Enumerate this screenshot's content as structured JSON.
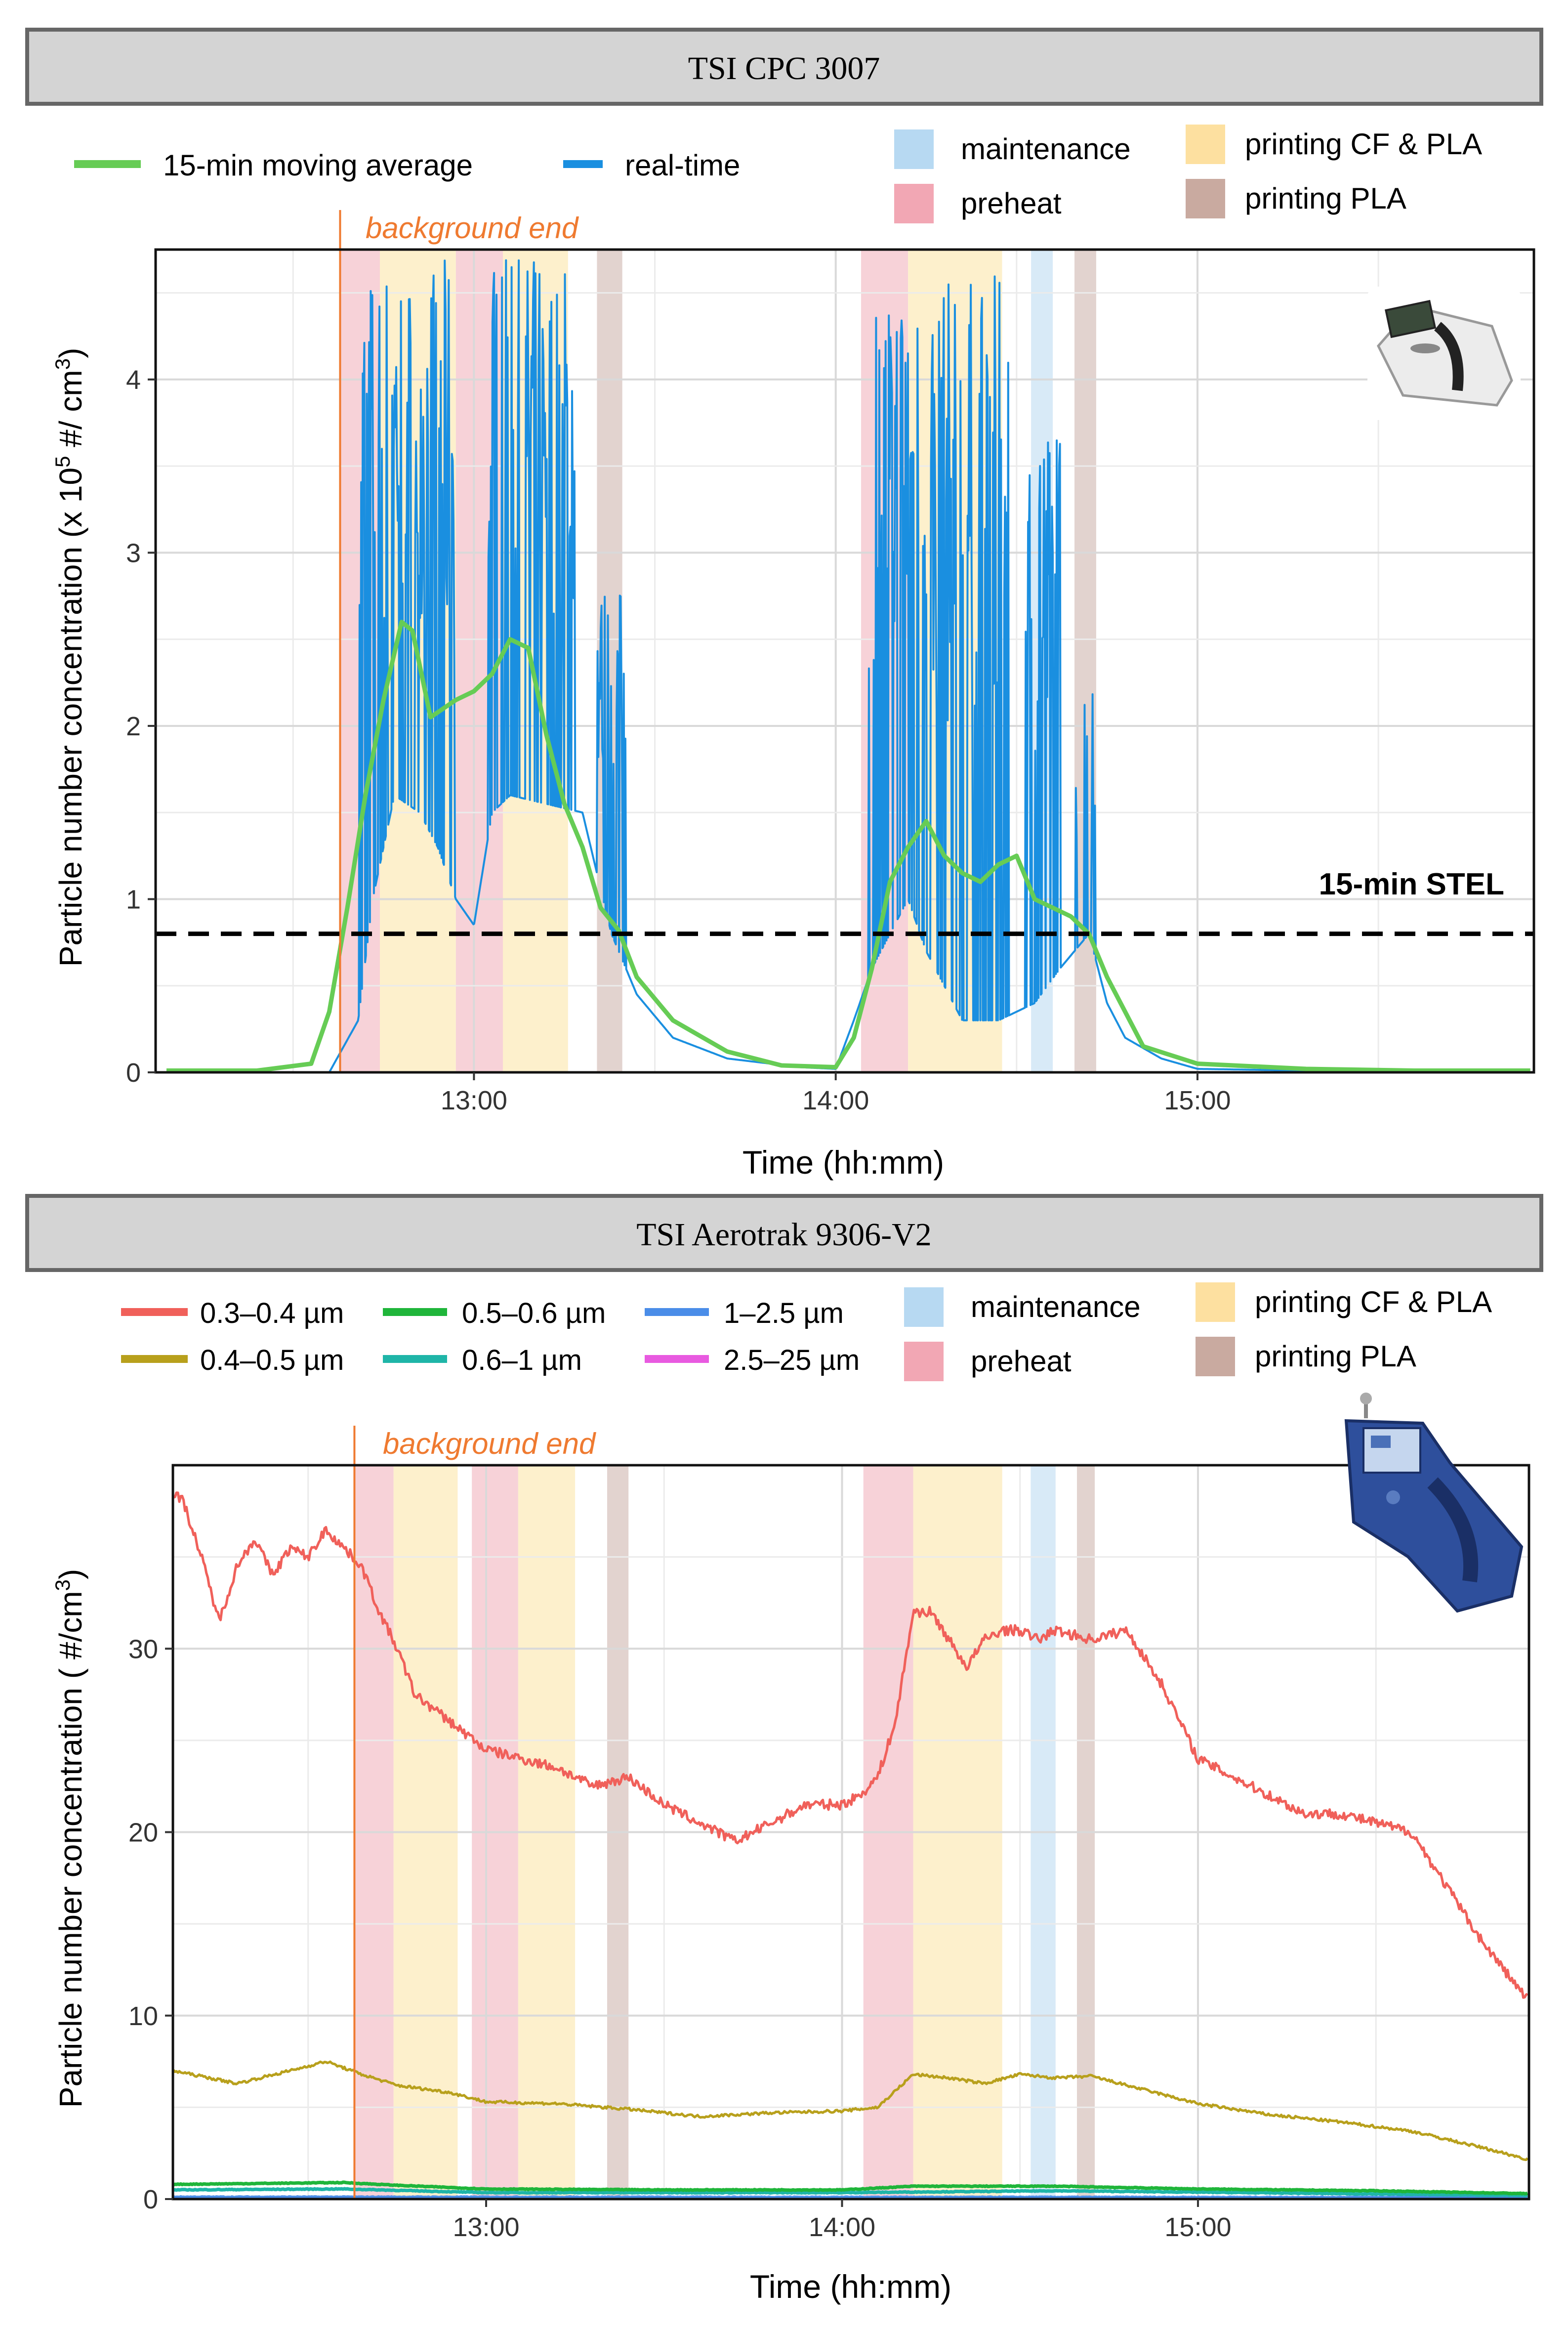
{
  "chart_data": [
    {
      "type": "line",
      "title": "TSI CPC 3007",
      "xlabel": "Time (hh:mm)",
      "ylabel": "Particle number concentration (x 10^5 #/ cm^3)",
      "ylabel_parts": {
        "main": "Particle number concentration (x 10",
        "sup1": "5",
        "mid": " #/ cm",
        "sup2": "3",
        "end": ")"
      },
      "xlim": [
        12.12,
        15.93
      ],
      "ylim": [
        0,
        4.75
      ],
      "xticks": [
        13,
        14,
        15
      ],
      "xtick_labels": [
        "13:00",
        "14:00",
        "15:00"
      ],
      "yticks": [
        0,
        1,
        2,
        3,
        4
      ],
      "ytick_labels": [
        "0",
        "1",
        "2",
        "3",
        "4"
      ],
      "grid": true,
      "stel": {
        "value": 0.8,
        "label": "15-min STEL"
      },
      "background_end": {
        "x": 12.63,
        "label": "background end"
      },
      "shaded_periods": [
        {
          "phase": "preheat",
          "start": 12.63,
          "end": 12.74
        },
        {
          "phase": "printing_cf_pla",
          "start": 12.74,
          "end": 12.95
        },
        {
          "phase": "preheat",
          "start": 12.95,
          "end": 13.08
        },
        {
          "phase": "printing_cf_pla",
          "start": 13.08,
          "end": 13.26
        },
        {
          "phase": "printing_pla",
          "start": 13.34,
          "end": 13.41
        },
        {
          "phase": "preheat",
          "start": 14.07,
          "end": 14.2
        },
        {
          "phase": "printing_cf_pla",
          "start": 14.2,
          "end": 14.46
        },
        {
          "phase": "maintenance",
          "start": 14.54,
          "end": 14.6
        },
        {
          "phase": "printing_pla",
          "start": 14.66,
          "end": 14.72
        }
      ],
      "series": [
        {
          "name": "15-min moving average",
          "color": "#66cc55",
          "x": [
            12.15,
            12.4,
            12.55,
            12.6,
            12.65,
            12.7,
            12.75,
            12.8,
            12.83,
            12.88,
            12.95,
            13.0,
            13.05,
            13.1,
            13.15,
            13.2,
            13.25,
            13.3,
            13.35,
            13.4,
            13.45,
            13.55,
            13.7,
            13.85,
            14.0,
            14.05,
            14.1,
            14.15,
            14.2,
            14.25,
            14.3,
            14.35,
            14.4,
            14.45,
            14.5,
            14.55,
            14.6,
            14.65,
            14.7,
            14.75,
            14.8,
            14.85,
            15.0,
            15.3,
            15.6,
            15.92
          ],
          "y": [
            0.01,
            0.01,
            0.05,
            0.35,
            0.95,
            1.6,
            2.15,
            2.6,
            2.55,
            2.05,
            2.15,
            2.2,
            2.3,
            2.5,
            2.45,
            1.95,
            1.55,
            1.3,
            0.95,
            0.82,
            0.55,
            0.3,
            0.12,
            0.04,
            0.03,
            0.2,
            0.6,
            1.1,
            1.3,
            1.45,
            1.25,
            1.15,
            1.1,
            1.2,
            1.25,
            1.0,
            0.95,
            0.9,
            0.8,
            0.55,
            0.35,
            0.15,
            0.05,
            0.02,
            0.01,
            0.01
          ]
        },
        {
          "name": "real-time",
          "color": "#1a8fe0",
          "baseline": {
            "x": [
              12.15,
              12.6,
              12.68,
              12.72,
              12.78,
              12.85,
              12.9,
              12.95,
              13.0,
              13.05,
              13.1,
              13.2,
              13.3,
              13.38,
              13.45,
              13.55,
              13.7,
              13.9,
              14.0,
              14.05,
              14.1,
              14.15,
              14.2,
              14.25,
              14.3,
              14.35,
              14.45,
              14.55,
              14.62,
              14.7,
              14.75,
              14.8,
              14.9,
              15.0,
              15.3,
              15.92
            ],
            "y": [
              0.0,
              0.0,
              0.3,
              1.0,
              1.6,
              1.5,
              1.3,
              1.0,
              0.85,
              1.5,
              1.6,
              1.55,
              1.5,
              0.8,
              0.45,
              0.2,
              0.08,
              0.03,
              0.02,
              0.3,
              0.6,
              0.8,
              1.0,
              0.7,
              0.5,
              0.3,
              0.3,
              0.4,
              0.6,
              0.8,
              0.4,
              0.2,
              0.08,
              0.02,
              0.01,
              0.0
            ]
          },
          "bursts": [
            {
              "start": 12.68,
              "end": 12.95,
              "peak": 4.7
            },
            {
              "start": 13.04,
              "end": 13.28,
              "peak": 4.7
            },
            {
              "start": 13.34,
              "end": 13.42,
              "peak": 2.8
            },
            {
              "start": 14.09,
              "end": 14.2,
              "peak": 4.7
            },
            {
              "start": 14.2,
              "end": 14.48,
              "peak": 4.6
            },
            {
              "start": 14.52,
              "end": 14.62,
              "peak": 3.8
            },
            {
              "start": 14.66,
              "end": 14.72,
              "peak": 2.3
            }
          ]
        }
      ]
    },
    {
      "type": "line",
      "title": "TSI Aerotrak 9306-V2",
      "xlabel": "Time (hh:mm)",
      "ylabel": "Particle number concentration ( #/cm^3)",
      "ylabel_parts": {
        "main": "Particle number concentration ( #/cm",
        "sup": "3",
        "end": ")"
      },
      "xlim": [
        12.12,
        15.93
      ],
      "ylim": [
        0,
        40
      ],
      "xticks": [
        13,
        14,
        15
      ],
      "xtick_labels": [
        "13:00",
        "14:00",
        "15:00"
      ],
      "yticks": [
        0,
        10,
        20,
        30
      ],
      "ytick_labels": [
        "0",
        "10",
        "20",
        "30"
      ],
      "grid": true,
      "background_end": {
        "x": 12.63,
        "label": "background end"
      },
      "shaded_periods": [
        {
          "phase": "preheat",
          "start": 12.63,
          "end": 12.74
        },
        {
          "phase": "printing_cf_pla",
          "start": 12.74,
          "end": 12.92
        },
        {
          "phase": "preheat",
          "start": 12.96,
          "end": 13.09
        },
        {
          "phase": "printing_cf_pla",
          "start": 13.09,
          "end": 13.25
        },
        {
          "phase": "printing_pla",
          "start": 13.34,
          "end": 13.4
        },
        {
          "phase": "preheat",
          "start": 14.06,
          "end": 14.2
        },
        {
          "phase": "printing_cf_pla",
          "start": 14.2,
          "end": 14.45
        },
        {
          "phase": "maintenance",
          "start": 14.53,
          "end": 14.6
        },
        {
          "phase": "printing_pla",
          "start": 14.66,
          "end": 14.71
        }
      ],
      "series": [
        {
          "name": "0.3–0.4 µm",
          "color": "#f0605a",
          "x": [
            12.12,
            12.15,
            12.2,
            12.25,
            12.3,
            12.35,
            12.4,
            12.45,
            12.5,
            12.55,
            12.6,
            12.65,
            12.7,
            12.75,
            12.8,
            12.9,
            13.0,
            13.1,
            13.2,
            13.3,
            13.4,
            13.5,
            13.6,
            13.7,
            13.8,
            13.9,
            14.0,
            14.05,
            14.1,
            14.15,
            14.2,
            14.25,
            14.3,
            14.35,
            14.4,
            14.45,
            14.5,
            14.55,
            14.6,
            14.7,
            14.8,
            14.9,
            15.0,
            15.1,
            15.2,
            15.3,
            15.4,
            15.5,
            15.6,
            15.7,
            15.8,
            15.92
          ],
          "y": [
            38.5,
            38.0,
            35.0,
            31.5,
            34.5,
            36.0,
            34.0,
            35.5,
            35.0,
            36.5,
            35.5,
            34.5,
            32.0,
            30.0,
            27.5,
            26.0,
            24.5,
            24.0,
            23.5,
            22.5,
            23.0,
            21.5,
            20.5,
            19.5,
            20.5,
            21.5,
            21.5,
            22.0,
            23.0,
            26.0,
            32.0,
            32.0,
            30.5,
            29.0,
            30.5,
            31.0,
            31.0,
            30.5,
            31.0,
            30.5,
            31.0,
            28.0,
            24.0,
            23.0,
            22.0,
            21.0,
            21.0,
            20.5,
            20.0,
            17.0,
            14.0,
            11.0
          ]
        },
        {
          "name": "0.4–0.5 µm",
          "color": "#b8a01c",
          "x": [
            12.12,
            12.3,
            12.45,
            12.55,
            12.65,
            12.75,
            12.9,
            13.0,
            13.2,
            13.4,
            13.6,
            13.8,
            14.0,
            14.1,
            14.2,
            14.3,
            14.4,
            14.5,
            14.6,
            14.7,
            14.8,
            15.0,
            15.2,
            15.4,
            15.6,
            15.8,
            15.92
          ],
          "y": [
            7.0,
            6.3,
            7.0,
            7.5,
            6.8,
            6.2,
            5.8,
            5.3,
            5.2,
            4.9,
            4.5,
            4.7,
            4.8,
            5.0,
            6.8,
            6.6,
            6.3,
            6.8,
            6.6,
            6.7,
            6.2,
            5.2,
            4.6,
            4.2,
            3.7,
            2.8,
            2.2
          ]
        },
        {
          "name": "0.5–0.6 µm",
          "color": "#1fb53a",
          "x": [
            12.12,
            12.6,
            12.75,
            13.0,
            13.5,
            14.0,
            14.2,
            14.6,
            15.0,
            15.5,
            15.92
          ],
          "y": [
            0.8,
            0.9,
            0.75,
            0.55,
            0.5,
            0.5,
            0.7,
            0.7,
            0.55,
            0.45,
            0.3
          ]
        },
        {
          "name": "0.6–1 µm",
          "color": "#1fb5a8",
          "x": [
            12.12,
            12.6,
            13.0,
            14.0,
            14.6,
            15.92
          ],
          "y": [
            0.5,
            0.55,
            0.35,
            0.35,
            0.45,
            0.2
          ]
        },
        {
          "name": "1–2.5 µm",
          "color": "#4a8de8",
          "x": [
            12.12,
            15.92
          ],
          "y": [
            0.1,
            0.08
          ]
        },
        {
          "name": "2.5–25 µm",
          "color": "#e85ae0",
          "x": [
            12.12,
            15.92
          ],
          "y": [
            0.05,
            0.05
          ]
        }
      ]
    }
  ],
  "phase_legend": [
    {
      "key": "maintenance",
      "label": "maintenance",
      "color": "#b7d9f2"
    },
    {
      "key": "preheat",
      "label": "preheat",
      "color": "#f2a7b4"
    },
    {
      "key": "printing_cf_pla",
      "label": "printing CF & PLA",
      "color": "#fde0a0"
    },
    {
      "key": "printing_pla",
      "label": "printing PLA",
      "color": "#c9aaa0"
    }
  ],
  "shade_colors": {
    "maintenance": "#d8eaf7",
    "preheat": "#f7d2d8",
    "printing_cf_pla": "#fdf0cc",
    "printing_pla": "#e2d3cf"
  },
  "accent_color": "#ef7a30",
  "device_icons": [
    "cpc-device-photo",
    "aerotrak-device-photo"
  ]
}
